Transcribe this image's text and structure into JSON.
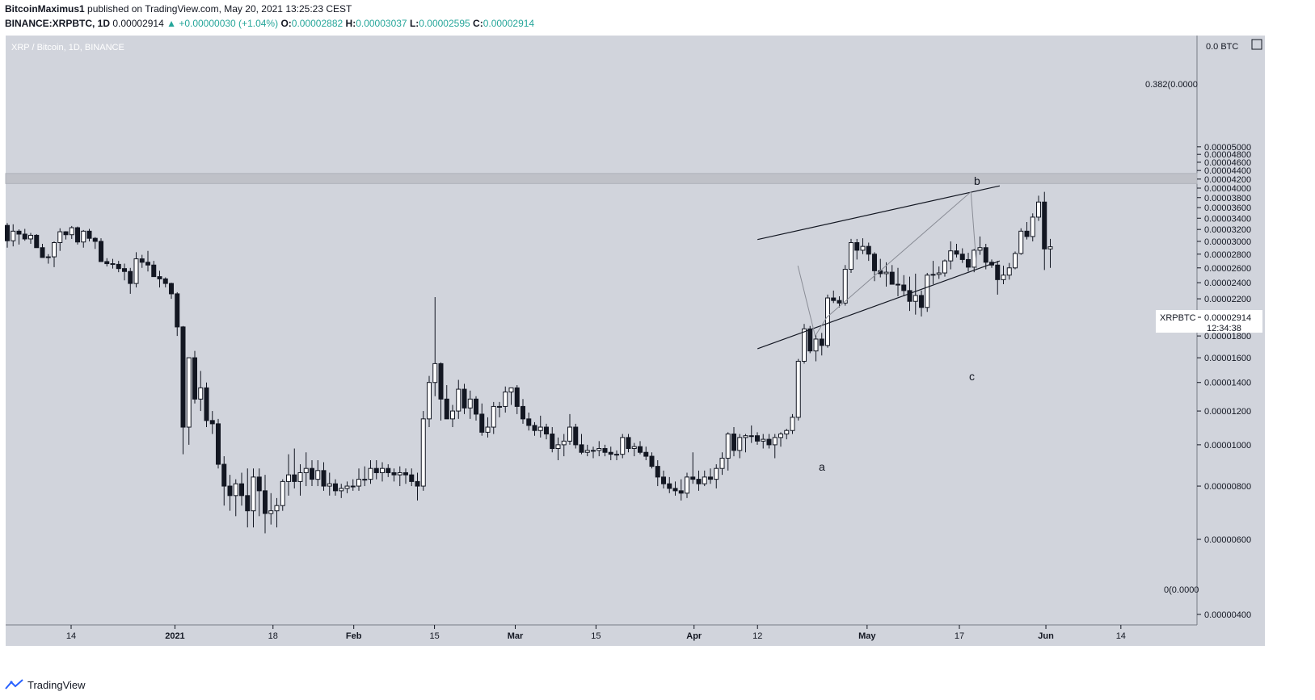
{
  "header": {
    "author": "BitcoinMaximus1",
    "published_text": "published on TradingView.com, May 20, 2021 13:25:23 CEST",
    "symbol": "BINANCE:XRPBTC, 1D",
    "last": "0.00002914",
    "change": "▲ +0.00000030 (+1.04%)",
    "o_label": "O:",
    "o_val": "0.00002882",
    "h_label": "H:",
    "h_val": "0.00003037",
    "l_label": "L:",
    "l_val": "0.00002595",
    "c_label": "C:",
    "c_val": "0.00002914"
  },
  "chart_title": "XRP / Bitcoin, 1D, BINANCE",
  "footer": {
    "brand": "TradingView",
    "logo_icon": "tradingview-logo"
  },
  "price_tag": {
    "symbol": "XRPBTC",
    "price": "0.00002914",
    "countdown": "12:34:38"
  },
  "annotations": {
    "fib_382": "0.382(0.0000",
    "fib_0": "0(0.0000",
    "wave_a": "a",
    "wave_b": "b",
    "wave_c": "c"
  },
  "colors": {
    "bg": "#d1d4dc",
    "resistance": "#bfc1c8",
    "candle": "#131722",
    "accent": "#26a69a"
  },
  "chart_data": {
    "type": "candlestick",
    "title": "XRP / Bitcoin, 1D, BINANCE",
    "ylim": [
      3.4e-06,
      5.2e-06
    ],
    "y_unit_label": "BTC",
    "y_ticks": [
      "0.00000400",
      "0.00000600",
      "0.00000800",
      "0.00001000",
      "0.00001200",
      "0.00001400",
      "0.00001600",
      "0.00001800",
      "0.00002000",
      "0.00002200",
      "0.00002400",
      "0.00002600",
      "0.00002800",
      "0.00003000",
      "0.00003200",
      "0.00003400",
      "0.00003600",
      "0.00003800",
      "0.00004000",
      "0.00004200",
      "0.00004400",
      "0.00004600",
      "0.00004800",
      "0.00005000"
    ],
    "x_ticks": [
      "14",
      "2021",
      "18",
      "Feb",
      "15",
      "Mar",
      "15",
      "Apr",
      "12",
      "May",
      "17",
      "Jun",
      "14"
    ],
    "x_range": [
      "2020-12-05",
      "2021-06-21"
    ],
    "x_tick_dates": [
      "2020-12-14",
      "2021-01-01",
      "2021-01-18",
      "2021-02-01",
      "2021-02-15",
      "2021-03-01",
      "2021-03-15",
      "2021-04-01",
      "2021-04-12",
      "2021-05-01",
      "2021-05-17",
      "2021-06-01",
      "2021-06-14"
    ],
    "resistance_zone": [
      4.1e-05,
      4.33e-05
    ],
    "channel": {
      "upper": [
        [
          "2021-04-12",
          3.03e-05
        ],
        [
          "2021-05-24",
          4.05e-05
        ]
      ],
      "lower": [
        [
          "2021-04-12",
          1.68e-05
        ],
        [
          "2021-05-24",
          2.7e-05
        ]
      ]
    },
    "wave_path": [
      [
        "2021-04-19",
        2.63e-05
      ],
      [
        "2021-04-22",
        1.8e-05
      ],
      [
        "2021-04-24",
        1.99e-05
      ],
      [
        "2021-05-19",
        3.92e-05
      ],
      [
        "2021-05-20",
        2.59e-05
      ]
    ],
    "candles_ohlc": [
      [
        3270,
        3310,
        2900,
        3010
      ],
      [
        3010,
        3290,
        2920,
        3170
      ],
      [
        3170,
        3200,
        2950,
        3120
      ],
      [
        3120,
        3210,
        3010,
        3040
      ],
      [
        3040,
        3140,
        2960,
        3100
      ],
      [
        3100,
        3120,
        2910,
        2900
      ],
      [
        2900,
        2960,
        2750,
        2750
      ],
      [
        2750,
        2800,
        2660,
        2760
      ],
      [
        2760,
        3000,
        2610,
        2980
      ],
      [
        2980,
        3220,
        2850,
        3160
      ],
      [
        3160,
        3170,
        3030,
        3110
      ],
      [
        3110,
        3260,
        3040,
        3230
      ],
      [
        3230,
        3250,
        2950,
        2990
      ],
      [
        2990,
        3190,
        2900,
        3170
      ],
      [
        3170,
        3210,
        3000,
        3050
      ],
      [
        3050,
        3070,
        2880,
        3000
      ],
      [
        3000,
        3050,
        2800,
        2690
      ],
      [
        2690,
        2740,
        2620,
        2660
      ],
      [
        2660,
        2730,
        2590,
        2650
      ],
      [
        2650,
        2700,
        2540,
        2590
      ],
      [
        2590,
        2660,
        2430,
        2550
      ],
      [
        2550,
        2600,
        2260,
        2390
      ],
      [
        2390,
        2830,
        2340,
        2730
      ],
      [
        2730,
        2790,
        2600,
        2680
      ],
      [
        2680,
        2850,
        2550,
        2640
      ],
      [
        2640,
        2700,
        2480,
        2480
      ],
      [
        2480,
        2560,
        2340,
        2450
      ],
      [
        2450,
        2470,
        2340,
        2390
      ],
      [
        2390,
        2400,
        2200,
        2260
      ],
      [
        2260,
        2280,
        1800,
        1890
      ],
      [
        1890,
        1900,
        950,
        1100
      ],
      [
        1100,
        1600,
        1000,
        1600
      ],
      [
        1600,
        1660,
        1250,
        1280
      ],
      [
        1280,
        1490,
        1200,
        1360
      ],
      [
        1360,
        1400,
        1100,
        1140
      ],
      [
        1140,
        1200,
        1060,
        1120
      ],
      [
        1120,
        1150,
        880,
        900
      ],
      [
        900,
        940,
        720,
        800
      ],
      [
        800,
        850,
        700,
        760
      ],
      [
        760,
        830,
        680,
        810
      ],
      [
        810,
        860,
        720,
        760
      ],
      [
        760,
        880,
        640,
        700
      ],
      [
        700,
        880,
        640,
        840
      ],
      [
        840,
        880,
        680,
        780
      ],
      [
        780,
        850,
        620,
        690
      ],
      [
        690,
        770,
        650,
        700
      ],
      [
        700,
        750,
        640,
        720
      ],
      [
        720,
        830,
        700,
        820
      ],
      [
        820,
        950,
        760,
        850
      ],
      [
        850,
        980,
        790,
        820
      ],
      [
        820,
        900,
        760,
        860
      ],
      [
        860,
        960,
        800,
        880
      ],
      [
        880,
        920,
        800,
        830
      ],
      [
        830,
        920,
        800,
        870
      ],
      [
        870,
        910,
        780,
        800
      ],
      [
        800,
        860,
        760,
        810
      ],
      [
        810,
        830,
        760,
        780
      ],
      [
        780,
        810,
        750,
        790
      ],
      [
        790,
        820,
        770,
        800
      ],
      [
        800,
        830,
        780,
        800
      ],
      [
        800,
        880,
        780,
        830
      ],
      [
        830,
        890,
        800,
        830
      ],
      [
        830,
        920,
        810,
        880
      ],
      [
        880,
        920,
        830,
        860
      ],
      [
        860,
        910,
        820,
        880
      ],
      [
        880,
        900,
        840,
        860
      ],
      [
        860,
        880,
        820,
        850
      ],
      [
        850,
        890,
        800,
        860
      ],
      [
        860,
        880,
        810,
        850
      ],
      [
        850,
        880,
        800,
        820
      ],
      [
        820,
        860,
        740,
        800
      ],
      [
        800,
        1200,
        780,
        1150
      ],
      [
        1150,
        1450,
        1100,
        1400
      ],
      [
        1400,
        2220,
        1300,
        1550
      ],
      [
        1550,
        1560,
        1140,
        1280
      ],
      [
        1280,
        1380,
        1150,
        1150
      ],
      [
        1150,
        1240,
        1100,
        1200
      ],
      [
        1200,
        1420,
        1150,
        1350
      ],
      [
        1350,
        1390,
        1180,
        1220
      ],
      [
        1220,
        1340,
        1150,
        1280
      ],
      [
        1280,
        1300,
        1140,
        1180
      ],
      [
        1180,
        1250,
        1050,
        1070
      ],
      [
        1070,
        1160,
        1040,
        1100
      ],
      [
        1100,
        1260,
        1060,
        1230
      ],
      [
        1230,
        1260,
        1160,
        1230
      ],
      [
        1230,
        1370,
        1190,
        1330
      ],
      [
        1330,
        1360,
        1240,
        1360
      ],
      [
        1360,
        1380,
        1180,
        1230
      ],
      [
        1230,
        1280,
        1120,
        1150
      ],
      [
        1150,
        1190,
        1080,
        1110
      ],
      [
        1110,
        1130,
        1050,
        1080
      ],
      [
        1080,
        1170,
        1040,
        1100
      ],
      [
        1100,
        1120,
        1030,
        1060
      ],
      [
        1060,
        1100,
        960,
        980
      ],
      [
        980,
        1040,
        920,
        1000
      ],
      [
        1000,
        1060,
        940,
        1020
      ],
      [
        1020,
        1180,
        1000,
        1100
      ],
      [
        1100,
        1120,
        980,
        1000
      ],
      [
        1000,
        1060,
        950,
        960
      ],
      [
        960,
        1000,
        940,
        970
      ],
      [
        970,
        990,
        930,
        970
      ],
      [
        970,
        1020,
        940,
        980
      ],
      [
        980,
        1000,
        940,
        960
      ],
      [
        960,
        990,
        920,
        950
      ],
      [
        950,
        970,
        920,
        950
      ],
      [
        950,
        1060,
        930,
        1040
      ],
      [
        1040,
        1060,
        960,
        980
      ],
      [
        980,
        1010,
        940,
        990
      ],
      [
        990,
        1020,
        950,
        960
      ],
      [
        960,
        990,
        920,
        940
      ],
      [
        940,
        960,
        880,
        890
      ],
      [
        890,
        920,
        800,
        840
      ],
      [
        840,
        870,
        790,
        810
      ],
      [
        810,
        840,
        770,
        790
      ],
      [
        790,
        820,
        760,
        780
      ],
      [
        780,
        830,
        740,
        770
      ],
      [
        770,
        860,
        750,
        840
      ],
      [
        840,
        960,
        810,
        830
      ],
      [
        830,
        870,
        780,
        810
      ],
      [
        810,
        870,
        800,
        840
      ],
      [
        840,
        880,
        810,
        830
      ],
      [
        830,
        900,
        790,
        880
      ],
      [
        880,
        960,
        850,
        930
      ],
      [
        930,
        1070,
        870,
        1060
      ],
      [
        1060,
        1100,
        940,
        970
      ],
      [
        970,
        1060,
        930,
        1040
      ],
      [
        1040,
        1060,
        960,
        1050
      ],
      [
        1050,
        1110,
        1010,
        1050
      ],
      [
        1050,
        1070,
        1000,
        1020
      ],
      [
        1020,
        1060,
        980,
        1030
      ],
      [
        1030,
        1060,
        980,
        1000
      ],
      [
        1000,
        1060,
        930,
        1040
      ],
      [
        1040,
        1070,
        990,
        1060
      ],
      [
        1060,
        1090,
        1030,
        1080
      ],
      [
        1080,
        1180,
        1060,
        1160
      ],
      [
        1160,
        1590,
        1140,
        1570
      ],
      [
        1570,
        1920,
        1550,
        1870
      ],
      [
        1870,
        1900,
        1640,
        1660
      ],
      [
        1660,
        1810,
        1570,
        1770
      ],
      [
        1770,
        1830,
        1620,
        1710
      ],
      [
        1710,
        2250,
        1690,
        2210
      ],
      [
        2210,
        2300,
        2150,
        2180
      ],
      [
        2180,
        2230,
        2100,
        2150
      ],
      [
        2150,
        2640,
        2120,
        2580
      ],
      [
        2580,
        3040,
        2530,
        2980
      ],
      [
        2980,
        3040,
        2720,
        2860
      ],
      [
        2860,
        3050,
        2800,
        2920
      ],
      [
        2920,
        2980,
        2700,
        2800
      ],
      [
        2800,
        2830,
        2420,
        2560
      ],
      [
        2560,
        2730,
        2470,
        2520
      ],
      [
        2520,
        2680,
        2350,
        2540
      ],
      [
        2540,
        2640,
        2390,
        2380
      ],
      [
        2380,
        2600,
        2230,
        2370
      ],
      [
        2370,
        2500,
        2230,
        2300
      ],
      [
        2300,
        2480,
        2060,
        2170
      ],
      [
        2170,
        2520,
        2020,
        2240
      ],
      [
        2240,
        2300,
        2000,
        2100
      ],
      [
        2100,
        2530,
        2050,
        2500
      ],
      [
        2500,
        2700,
        2380,
        2510
      ],
      [
        2510,
        2620,
        2450,
        2530
      ],
      [
        2530,
        2720,
        2480,
        2700
      ],
      [
        2700,
        3000,
        2580,
        2850
      ],
      [
        2850,
        2960,
        2750,
        2800
      ],
      [
        2800,
        2890,
        2670,
        2720
      ],
      [
        2720,
        2820,
        2550,
        2610
      ],
      [
        2610,
        2880,
        2540,
        2860
      ],
      [
        2860,
        3080,
        2790,
        2900
      ],
      [
        2900,
        2960,
        2580,
        2680
      ],
      [
        2680,
        2720,
        2600,
        2640
      ],
      [
        2640,
        2700,
        2250,
        2440
      ],
      [
        2440,
        2630,
        2380,
        2500
      ],
      [
        2500,
        2670,
        2440,
        2600
      ],
      [
        2600,
        2840,
        2580,
        2810
      ],
      [
        2810,
        3220,
        2790,
        3170
      ],
      [
        3170,
        3330,
        3030,
        3080
      ],
      [
        3080,
        3490,
        3000,
        3420
      ],
      [
        3420,
        3840,
        3350,
        3710
      ],
      [
        3710,
        3920,
        2570,
        2880
      ],
      [
        2880,
        3040,
        2600,
        2914
      ]
    ]
  }
}
